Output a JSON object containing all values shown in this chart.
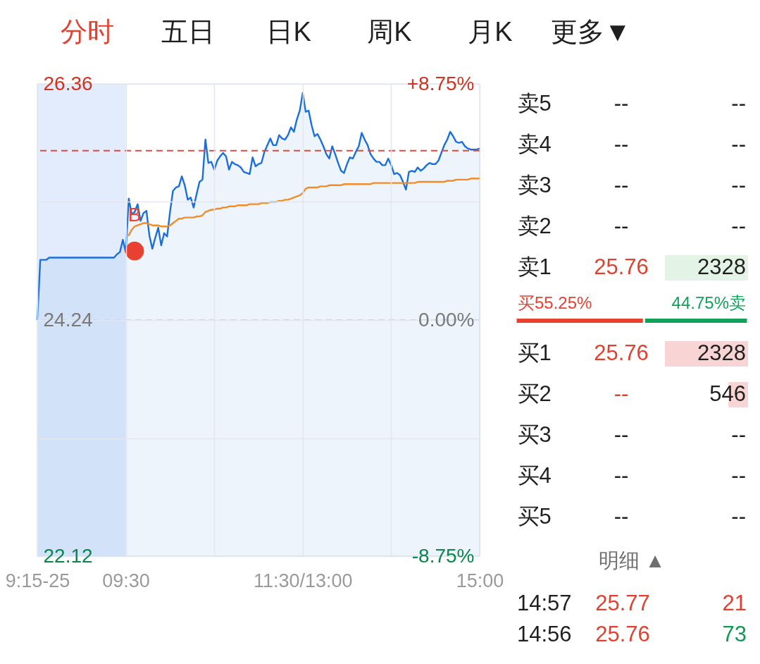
{
  "chart_data": [
    {
      "type": "other",
      "annotations": [
        "分时",
        "五日",
        "日K",
        "周K",
        "月K",
        "更多▼"
      ]
    },
    {
      "type": "line",
      "categories": [
        "9:15-25",
        null,
        null,
        null,
        null,
        null,
        null,
        null,
        null,
        null,
        null,
        null,
        null,
        null,
        null,
        null,
        null,
        null,
        null,
        null,
        null,
        null,
        null,
        null,
        null,
        null,
        null,
        null,
        null,
        null,
        "09:30",
        null,
        null,
        null,
        null,
        null,
        null,
        null,
        null,
        null,
        null,
        null,
        null,
        null,
        null,
        null,
        null,
        null,
        null,
        null,
        null,
        null,
        null,
        null,
        null,
        null,
        null,
        null,
        null,
        null,
        null,
        null,
        null,
        null,
        null,
        null,
        null,
        null,
        null,
        null,
        null,
        null,
        null,
        null,
        null,
        null,
        null,
        null,
        null,
        null,
        null,
        null,
        null,
        null,
        null,
        null,
        null,
        null,
        null,
        null,
        "11:30/13:00",
        null,
        null,
        null,
        null,
        null,
        null,
        null,
        null,
        null,
        null,
        null,
        null,
        null,
        null,
        null,
        null,
        null,
        null,
        null,
        null,
        null,
        null,
        null,
        null,
        null,
        null,
        null,
        null,
        null,
        null,
        null,
        null,
        null,
        null,
        null,
        null,
        null,
        null,
        null,
        null,
        null,
        null,
        null,
        null,
        null,
        null,
        null,
        null,
        null,
        null,
        null,
        null,
        null,
        null,
        null,
        null,
        null,
        null,
        null,
        "15:00"
      ],
      "series": [
        {
          "type": "area",
          "color": "#1a6fdc",
          "values": [
            24.24,
            24.78,
            24.78,
            24.78,
            24.8,
            24.8,
            24.8,
            24.8,
            24.8,
            24.8,
            24.8,
            24.8,
            24.8,
            24.8,
            24.8,
            24.8,
            24.8,
            24.8,
            24.8,
            24.8,
            24.8,
            24.8,
            24.8,
            24.8,
            24.8,
            24.8,
            24.8,
            24.83,
            24.85,
            24.96,
            24.85,
            25.33,
            25.19,
            25.21,
            25.28,
            25.13,
            25.2,
            25.22,
            25.0,
            24.88,
            24.98,
            25.07,
            24.91,
            25.02,
            24.99,
            25.21,
            25.4,
            25.43,
            25.44,
            25.53,
            25.45,
            25.32,
            25.34,
            25.25,
            25.37,
            25.48,
            25.5,
            25.86,
            25.65,
            25.66,
            25.59,
            25.67,
            25.71,
            25.74,
            25.71,
            25.59,
            25.66,
            25.64,
            25.63,
            25.61,
            25.57,
            25.56,
            25.55,
            25.7,
            25.62,
            25.64,
            25.65,
            25.75,
            25.81,
            25.87,
            25.81,
            25.81,
            25.9,
            25.87,
            25.86,
            25.9,
            25.97,
            25.93,
            26.04,
            26.12,
            26.28,
            26.11,
            26.12,
            25.99,
            25.89,
            25.91,
            25.86,
            25.8,
            25.73,
            25.69,
            25.8,
            25.73,
            25.65,
            25.58,
            25.56,
            25.64,
            25.7,
            25.69,
            25.75,
            25.8,
            25.92,
            25.86,
            25.81,
            25.73,
            25.69,
            25.66,
            25.66,
            25.63,
            25.63,
            25.69,
            25.63,
            25.55,
            25.56,
            25.54,
            25.48,
            25.41,
            25.57,
            25.58,
            25.57,
            25.61,
            25.58,
            25.6,
            25.63,
            25.65,
            25.64,
            25.64,
            25.67,
            25.74,
            25.81,
            25.86,
            25.93,
            25.89,
            25.84,
            25.83,
            25.84,
            25.8,
            25.78,
            25.77,
            25.77,
            25.77,
            25.78
          ]
        },
        {
          "color": "#f08c2a",
          "values": [
            null,
            null,
            null,
            null,
            null,
            null,
            null,
            null,
            null,
            null,
            null,
            null,
            null,
            null,
            null,
            null,
            null,
            null,
            null,
            null,
            null,
            null,
            null,
            null,
            null,
            null,
            null,
            null,
            null,
            null,
            null,
            25.0,
            25.05,
            25.08,
            25.09,
            25.1,
            25.11,
            25.11,
            25.1,
            25.09,
            25.09,
            25.09,
            25.08,
            25.08,
            25.08,
            25.09,
            25.11,
            25.13,
            25.15,
            25.15,
            25.16,
            25.16,
            25.16,
            25.16,
            25.17,
            25.17,
            25.18,
            25.21,
            25.22,
            25.23,
            25.23,
            25.24,
            25.24,
            25.25,
            25.25,
            25.26,
            25.26,
            25.26,
            25.27,
            25.27,
            25.27,
            25.27,
            25.28,
            25.28,
            25.28,
            25.28,
            25.29,
            25.29,
            25.29,
            25.3,
            25.3,
            25.3,
            25.31,
            25.31,
            25.32,
            25.32,
            25.33,
            25.34,
            25.35,
            25.36,
            25.38,
            25.42,
            25.43,
            25.43,
            25.43,
            25.43,
            25.44,
            25.44,
            25.44,
            25.45,
            25.45,
            25.45,
            25.45,
            25.45,
            25.46,
            25.46,
            25.46,
            25.46,
            25.46,
            25.46,
            25.46,
            25.46,
            25.46,
            25.46,
            25.47,
            25.47,
            25.47,
            25.47,
            25.47,
            25.47,
            25.47,
            25.47,
            25.47,
            25.47,
            25.47,
            25.47,
            25.47,
            25.47,
            25.47,
            25.48,
            25.48,
            25.48,
            25.48,
            25.48,
            25.48,
            25.48,
            25.48,
            25.48,
            25.48,
            25.49,
            25.49,
            25.49,
            25.5,
            25.5,
            25.5,
            25.5,
            25.5,
            25.51,
            25.51,
            25.51,
            25.51
          ]
        },
        {
          "type": "scatter",
          "color": "#e8412f",
          "values": [
            null,
            null,
            null,
            null,
            null,
            null,
            null,
            null,
            null,
            null,
            null,
            null,
            null,
            null,
            null,
            null,
            null,
            null,
            null,
            null,
            null,
            null,
            null,
            null,
            null,
            null,
            null,
            null,
            null,
            null,
            null,
            null,
            null,
            24.86,
            null,
            null,
            null,
            null,
            null,
            null,
            null,
            null,
            null,
            null,
            null,
            null,
            null,
            null,
            null,
            null,
            null,
            null,
            null,
            null,
            null,
            null,
            null,
            null,
            null,
            null,
            null,
            null,
            null,
            null,
            null,
            null,
            null,
            null,
            null,
            null,
            null,
            null,
            null,
            null,
            null,
            null,
            null,
            null,
            null,
            null,
            null,
            null,
            null,
            null,
            null,
            null,
            null,
            null,
            null,
            null,
            null,
            null,
            null,
            null,
            null,
            null,
            null,
            null,
            null,
            null,
            null,
            null,
            null,
            null,
            null,
            null,
            null,
            null,
            null,
            null,
            null,
            null,
            null,
            null,
            null,
            null,
            null,
            null,
            null,
            null,
            null,
            null,
            null,
            null,
            null,
            null,
            null,
            null,
            null,
            null,
            null,
            null,
            null,
            null,
            null,
            null,
            null,
            null,
            null,
            null,
            null,
            null,
            null,
            null,
            null,
            null,
            null,
            null,
            null,
            null,
            null
          ],
          "value_labels": [
            null,
            null,
            null,
            null,
            null,
            null,
            null,
            null,
            null,
            null,
            null,
            null,
            null,
            null,
            null,
            null,
            null,
            null,
            null,
            null,
            null,
            null,
            null,
            null,
            null,
            null,
            null,
            null,
            null,
            null,
            null,
            null,
            null,
            "B",
            null,
            null,
            null,
            null,
            null,
            null,
            null,
            null,
            null,
            null,
            null,
            null,
            null,
            null,
            null,
            null,
            null,
            null,
            null,
            null,
            null,
            null,
            null,
            null,
            null,
            null,
            null,
            null,
            null,
            null,
            null,
            null,
            null,
            null,
            null,
            null,
            null,
            null,
            null,
            null,
            null,
            null,
            null,
            null,
            null,
            null,
            null,
            null,
            null,
            null,
            null,
            null,
            null,
            null,
            null,
            null,
            null,
            null,
            null,
            null,
            null,
            null,
            null,
            null,
            null,
            null,
            null,
            null,
            null,
            null,
            null,
            null,
            null,
            null,
            null,
            null,
            null,
            null,
            null,
            null,
            null,
            null,
            null,
            null,
            null,
            null,
            null,
            null,
            null,
            null,
            null,
            null,
            null,
            null,
            null,
            null,
            null,
            null,
            null,
            null,
            null,
            null,
            null,
            null,
            null,
            null,
            null,
            null,
            null,
            null,
            null,
            null,
            null,
            null,
            null,
            null,
            null
          ]
        }
      ],
      "ylim": [
        22.12,
        26.36
      ],
      "yticks": [
        22.12,
        {
          "value": 23.18,
          "label": null
        },
        24.24,
        {
          "value": 25.3,
          "label": null
        },
        26.36
      ],
      "y2lim": [
        -8.75,
        8.75
      ],
      "y2ticks": [
        {
          "value": -8.75,
          "label": "-8.75%"
        },
        {
          "value": 0,
          "label": "0.00%"
        },
        {
          "value": 8.75,
          "label": "+8.75%"
        }
      ],
      "grid": true,
      "ref_lines": [
        {
          "axis": "y",
          "value": 25.76,
          "color": "#e04b3c",
          "line_style": "dashed"
        },
        {
          "axis": "y2",
          "value": 0,
          "color": "#cfcfcf",
          "line_style": "dashed"
        }
      ],
      "bands": [
        {
          "axis": "x",
          "from": "9:15-25",
          "to": "09:30",
          "color": "#dde9fb"
        }
      ]
    },
    {
      "type": "bar",
      "orientation": "horizontal",
      "categories": [
        "卖5",
        "卖4",
        "卖3",
        "卖2",
        "卖1"
      ],
      "values": [
        null,
        null,
        null,
        null,
        2328
      ],
      "colors": [
        null,
        null,
        null,
        null,
        "#e3f3e6"
      ],
      "value_labels": [
        "--",
        "--",
        "--",
        "--",
        "2328"
      ],
      "annotations": [
        "--",
        "--",
        "--",
        "--",
        "25.76"
      ],
      "xlim": [
        2328,
        0
      ],
      "tick_labels": "y"
    },
    {
      "type": "bar",
      "orientation": "horizontal",
      "stacked": true,
      "categories": [
        null
      ],
      "series": [
        {
          "color": "#e8412f",
          "values": [
            55.25
          ],
          "value_labels": [
            "买55.25%"
          ]
        },
        {
          "color": "#12a05b",
          "values": [
            44.75
          ],
          "value_labels": [
            "44.75%卖"
          ]
        }
      ],
      "xlim": [
        0,
        100
      ],
      "tick_labels": false
    },
    {
      "type": "bar",
      "orientation": "horizontal",
      "categories": [
        "买1",
        "买2",
        "买3",
        "买4",
        "买5"
      ],
      "values": [
        2328,
        546,
        null,
        null,
        null
      ],
      "colors": [
        "#f9d4d4",
        "#f9d4d4",
        null,
        null,
        null
      ],
      "value_labels": [
        "2328",
        "546",
        "--",
        "--",
        "--"
      ],
      "annotations": [
        "25.76",
        "--",
        "--",
        "--",
        "--"
      ],
      "xlim": [
        2328,
        0
      ],
      "tick_labels": "y"
    },
    {
      "type": "other",
      "annotations": [
        "明细 ▲",
        "14:57",
        "25.77",
        "21",
        "14:56",
        "25.76",
        "73"
      ]
    }
  ]
}
